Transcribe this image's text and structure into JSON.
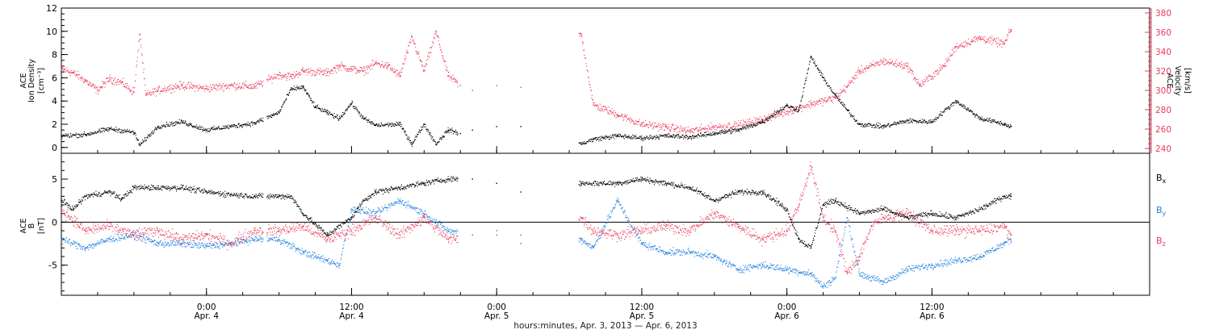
{
  "figure": {
    "xlabel": "hours:minutes, Apr.  3, 2013 — Apr.  6, 2013",
    "xticks": [
      {
        "time": "0:00",
        "date": "Apr. 4",
        "h": 24
      },
      {
        "time": "12:00",
        "date": "Apr. 4",
        "h": 36
      },
      {
        "time": "0:00",
        "date": "Apr. 5",
        "h": 48
      },
      {
        "time": "12:00",
        "date": "Apr. 5",
        "h": 60
      },
      {
        "time": "0:00",
        "date": "Apr. 6",
        "h": 72
      },
      {
        "time": "12:00",
        "date": "Apr. 6",
        "h": 84
      }
    ]
  },
  "colors": {
    "black": "#000000",
    "red": "#e83a5c",
    "blue": "#1f82e0"
  },
  "chart_data": [
    {
      "type": "scatter",
      "title": "",
      "xlabel": "hours:minutes, Apr.  3, 2013 — Apr.  6, 2013",
      "x_unit": "hours since Apr. 3 00:00 (UT)",
      "xlim": [
        12,
        102
      ],
      "left_axis": {
        "label_lines": [
          "ACE",
          "Ion Density"
        ],
        "unit": "[cm⁻³]",
        "ylim": [
          -0.5,
          12
        ],
        "ticks": [
          0,
          2,
          4,
          6,
          8,
          10,
          12
        ]
      },
      "right_axis": {
        "label_lines": [
          "ACE",
          "Velocity"
        ],
        "unit": "[km/s]",
        "ylim": [
          235,
          385
        ],
        "ticks": [
          240,
          260,
          280,
          300,
          320,
          340,
          360,
          380
        ]
      },
      "series": [
        {
          "name": "Ion Density",
          "axis": "left",
          "color": "#000000",
          "points": [
            [
              12,
              1.0
            ],
            [
              14,
              1.1
            ],
            [
              16,
              1.6
            ],
            [
              18,
              1.3
            ],
            [
              18.5,
              0.2
            ],
            [
              20,
              1.8
            ],
            [
              22,
              2.2
            ],
            [
              24,
              1.5
            ],
            [
              26,
              1.8
            ],
            [
              28,
              2.1
            ],
            [
              30,
              3.0
            ],
            [
              31,
              5.0
            ],
            [
              32,
              5.2
            ],
            [
              33,
              3.5
            ],
            [
              34,
              3.0
            ],
            [
              35,
              2.5
            ],
            [
              36,
              3.8
            ],
            [
              37,
              2.5
            ],
            [
              38,
              1.9
            ],
            [
              40,
              2.0
            ],
            [
              41,
              0.3
            ],
            [
              42,
              2.0
            ],
            [
              43,
              0.3
            ],
            [
              44,
              1.5
            ],
            [
              45,
              1.2
            ],
            [
              46,
              1.5
            ],
            [
              48,
              1.8
            ],
            [
              50,
              1.8
            ],
            [
              55,
              0.3
            ],
            [
              56,
              0.7
            ],
            [
              58,
              1.0
            ],
            [
              60,
              0.8
            ],
            [
              62,
              1.0
            ],
            [
              64,
              0.9
            ],
            [
              66,
              1.2
            ],
            [
              68,
              1.5
            ],
            [
              70,
              2.2
            ],
            [
              72,
              3.6
            ],
            [
              73,
              3.2
            ],
            [
              74,
              7.8
            ],
            [
              75,
              6.0
            ],
            [
              76,
              4.5
            ],
            [
              77,
              3.2
            ],
            [
              78,
              2.0
            ],
            [
              80,
              1.8
            ],
            [
              82,
              2.3
            ],
            [
              84,
              2.2
            ],
            [
              86,
              4.0
            ],
            [
              88,
              2.5
            ],
            [
              90,
              2.0
            ],
            [
              90.5,
              1.8
            ]
          ]
        },
        {
          "name": "Velocity",
          "axis": "right",
          "color": "#e83a5c",
          "points": [
            [
              12,
              322
            ],
            [
              13,
              318
            ],
            [
              14,
              310
            ],
            [
              15,
              300
            ],
            [
              16,
              312
            ],
            [
              17,
              308
            ],
            [
              18,
              298
            ],
            [
              18.5,
              358
            ],
            [
              19,
              295
            ],
            [
              20,
              300
            ],
            [
              22,
              305
            ],
            [
              24,
              302
            ],
            [
              26,
              305
            ],
            [
              28,
              304
            ],
            [
              30,
              316
            ],
            [
              31,
              314
            ],
            [
              32,
              320
            ],
            [
              34,
              318
            ],
            [
              35,
              325
            ],
            [
              36,
              322
            ],
            [
              37,
              320
            ],
            [
              38,
              328
            ],
            [
              39,
              325
            ],
            [
              40,
              315
            ],
            [
              41,
              355
            ],
            [
              42,
              320
            ],
            [
              43,
              360
            ],
            [
              44,
              315
            ],
            [
              45,
              305
            ],
            [
              46,
              300
            ],
            [
              48,
              305
            ],
            [
              50,
              303
            ],
            [
              55,
              358
            ],
            [
              56,
              285
            ],
            [
              58,
              275
            ],
            [
              60,
              265
            ],
            [
              62,
              262
            ],
            [
              64,
              258
            ],
            [
              66,
              262
            ],
            [
              68,
              264
            ],
            [
              70,
              270
            ],
            [
              72,
              278
            ],
            [
              74,
              286
            ],
            [
              76,
              292
            ],
            [
              77,
              304
            ],
            [
              78,
              320
            ],
            [
              80,
              330
            ],
            [
              82,
              325
            ],
            [
              83,
              305
            ],
            [
              85,
              325
            ],
            [
              86,
              345
            ],
            [
              88,
              354
            ],
            [
              90,
              348
            ],
            [
              90.5,
              362
            ]
          ]
        }
      ]
    },
    {
      "type": "scatter",
      "title": "",
      "xlabel": "hours:minutes, Apr.  3, 2013 — Apr.  6, 2013",
      "x_unit": "hours since Apr. 3 00:00 (UT)",
      "xlim": [
        12,
        102
      ],
      "left_axis": {
        "label_lines": [
          "ACE",
          "B"
        ],
        "unit": "[nT]",
        "ylim": [
          -8.5,
          8
        ],
        "ticks": [
          -5,
          0,
          5
        ]
      },
      "zero_line": true,
      "series": [
        {
          "name": "B",
          "subscript": "x",
          "axis": "left",
          "color": "#000000",
          "points": [
            [
              12,
              2.5
            ],
            [
              13,
              1.5
            ],
            [
              14,
              3.0
            ],
            [
              16,
              3.5
            ],
            [
              17,
              2.7
            ],
            [
              18,
              4.0
            ],
            [
              20,
              4.0
            ],
            [
              22,
              4.0
            ],
            [
              24,
              3.5
            ],
            [
              26,
              3.2
            ],
            [
              28,
              3.0
            ],
            [
              30,
              3.0
            ],
            [
              31,
              3.0
            ],
            [
              32,
              1.0
            ],
            [
              34,
              -1.5
            ],
            [
              36,
              0.5
            ],
            [
              37,
              2.5
            ],
            [
              38,
              3.5
            ],
            [
              40,
              4.0
            ],
            [
              42,
              4.5
            ],
            [
              44,
              5.0
            ],
            [
              46,
              5.0
            ],
            [
              48,
              4.5
            ],
            [
              50,
              3.5
            ],
            [
              55,
              4.5
            ],
            [
              58,
              4.5
            ],
            [
              60,
              5.0
            ],
            [
              62,
              4.5
            ],
            [
              64,
              4.0
            ],
            [
              66,
              2.5
            ],
            [
              68,
              3.5
            ],
            [
              70,
              3.5
            ],
            [
              72,
              1.5
            ],
            [
              73,
              -2.0
            ],
            [
              74,
              -3.0
            ],
            [
              75,
              2.0
            ],
            [
              76,
              2.5
            ],
            [
              78,
              1.0
            ],
            [
              80,
              1.5
            ],
            [
              82,
              0.5
            ],
            [
              84,
              1.0
            ],
            [
              86,
              0.5
            ],
            [
              88,
              1.5
            ],
            [
              90,
              3.0
            ],
            [
              90.5,
              3.0
            ]
          ]
        },
        {
          "name": "B",
          "subscript": "y",
          "axis": "left",
          "color": "#1f82e0",
          "points": [
            [
              12,
              -2.0
            ],
            [
              14,
              -3.0
            ],
            [
              16,
              -2.0
            ],
            [
              18,
              -1.5
            ],
            [
              20,
              -2.5
            ],
            [
              22,
              -2.5
            ],
            [
              24,
              -2.8
            ],
            [
              26,
              -2.5
            ],
            [
              28,
              -2.0
            ],
            [
              30,
              -2.0
            ],
            [
              32,
              -3.5
            ],
            [
              34,
              -4.5
            ],
            [
              35,
              -5.0
            ],
            [
              36,
              1.5
            ],
            [
              38,
              1.0
            ],
            [
              40,
              2.5
            ],
            [
              42,
              1.0
            ],
            [
              44,
              -1.0
            ],
            [
              46,
              -1.5
            ],
            [
              48,
              -1.5
            ],
            [
              50,
              -2.5
            ],
            [
              55,
              -2.0
            ],
            [
              56,
              -3.0
            ],
            [
              58,
              2.5
            ],
            [
              60,
              -2.5
            ],
            [
              62,
              -3.5
            ],
            [
              64,
              -3.5
            ],
            [
              66,
              -4.0
            ],
            [
              68,
              -5.5
            ],
            [
              70,
              -5.0
            ],
            [
              72,
              -5.5
            ],
            [
              74,
              -6.0
            ],
            [
              75,
              -7.5
            ],
            [
              76,
              -6.5
            ],
            [
              77,
              0.5
            ],
            [
              78,
              -6.0
            ],
            [
              80,
              -7.0
            ],
            [
              82,
              -5.5
            ],
            [
              84,
              -5.0
            ],
            [
              86,
              -4.5
            ],
            [
              88,
              -4.0
            ],
            [
              90,
              -2.5
            ],
            [
              90.5,
              -2.0
            ]
          ]
        },
        {
          "name": "B",
          "subscript": "z",
          "axis": "left",
          "color": "#e83a5c",
          "points": [
            [
              12,
              1.5
            ],
            [
              14,
              -1.0
            ],
            [
              16,
              -0.5
            ],
            [
              18,
              -1.5
            ],
            [
              20,
              -1.0
            ],
            [
              22,
              -2.0
            ],
            [
              24,
              -1.5
            ],
            [
              26,
              -2.5
            ],
            [
              28,
              -1.0
            ],
            [
              30,
              -1.0
            ],
            [
              32,
              -0.5
            ],
            [
              34,
              -2.0
            ],
            [
              36,
              -1.0
            ],
            [
              38,
              0.5
            ],
            [
              40,
              -1.5
            ],
            [
              42,
              0.5
            ],
            [
              44,
              -2.0
            ],
            [
              46,
              -1.5
            ],
            [
              48,
              -1.0
            ],
            [
              50,
              -1.5
            ],
            [
              55,
              0.5
            ],
            [
              56,
              -1.0
            ],
            [
              58,
              -1.5
            ],
            [
              60,
              -1.0
            ],
            [
              62,
              -0.5
            ],
            [
              64,
              -1.0
            ],
            [
              66,
              1.0
            ],
            [
              68,
              -0.5
            ],
            [
              70,
              -2.0
            ],
            [
              72,
              -1.0
            ],
            [
              73,
              2.0
            ],
            [
              74,
              6.5
            ],
            [
              75,
              0.5
            ],
            [
              76,
              -1.0
            ],
            [
              77,
              -6.0
            ],
            [
              78,
              -4.0
            ],
            [
              79,
              -0.5
            ],
            [
              80,
              0.5
            ],
            [
              82,
              1.0
            ],
            [
              84,
              -1.0
            ],
            [
              86,
              -1.0
            ],
            [
              88,
              -1.0
            ],
            [
              90,
              -0.5
            ],
            [
              90.5,
              -1.5
            ]
          ]
        }
      ]
    }
  ]
}
